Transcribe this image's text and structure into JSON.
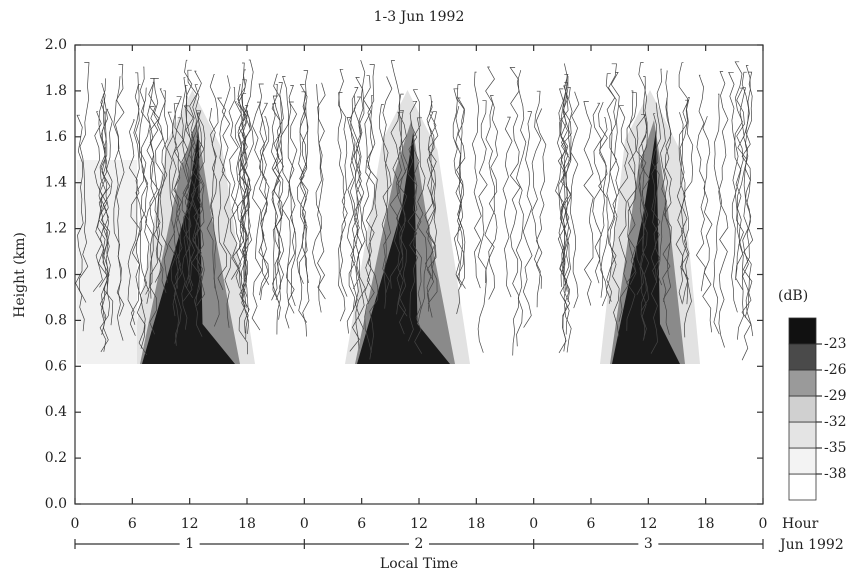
{
  "chart_data": {
    "type": "contour",
    "title": "1-3 Jun 1992",
    "ylabel": "Height (km)",
    "xlabel": "Local Time",
    "xunit_label": "Hour",
    "day_unit_label": "Jun 1992",
    "xlim": [
      0,
      72
    ],
    "xticks": [
      0,
      6,
      12,
      18,
      {
        "value": 24,
        "label": "0"
      },
      {
        "value": 30,
        "label": "6"
      },
      {
        "value": 36,
        "label": "12"
      },
      {
        "value": 42,
        "label": "18"
      },
      {
        "value": 48,
        "label": "0"
      },
      {
        "value": 54,
        "label": "6"
      },
      {
        "value": 60,
        "label": "12"
      },
      {
        "value": 66,
        "label": "18"
      },
      {
        "value": 72,
        "label": "0"
      }
    ],
    "day_bounds": [
      0,
      24,
      48,
      72
    ],
    "day_ticks": [
      {
        "value": 12,
        "label": "1"
      },
      {
        "value": 36,
        "label": "2"
      },
      {
        "value": 60,
        "label": "3"
      }
    ],
    "ylim": [
      0,
      2
    ],
    "yticks": [
      {
        "value": 0,
        "label": "0.0"
      },
      {
        "value": 0.2,
        "label": "0.2"
      },
      {
        "value": 0.4,
        "label": "0.4"
      },
      {
        "value": 0.6,
        "label": "0.6"
      },
      {
        "value": 0.8,
        "label": "0.8"
      },
      {
        "value": 1,
        "label": "1.0"
      },
      {
        "value": 1.2,
        "label": "1.2"
      },
      {
        "value": 1.4,
        "label": "1.4"
      },
      {
        "value": 1.6,
        "label": "1.6"
      },
      {
        "value": 1.8,
        "label": "1.8"
      },
      {
        "value": 2,
        "label": "2.0"
      }
    ],
    "colorbar_label": "(dB)",
    "clim": [
      -41,
      -20
    ],
    "cticks": [
      -23,
      -26,
      -29,
      -32,
      -35,
      -38
    ],
    "colors": [
      "#ffffff",
      "#f3f3f3",
      "#e4e4e4",
      "#d0d0d0",
      "#9a9a9a",
      "#4a4a4a",
      "#111111"
    ]
  }
}
